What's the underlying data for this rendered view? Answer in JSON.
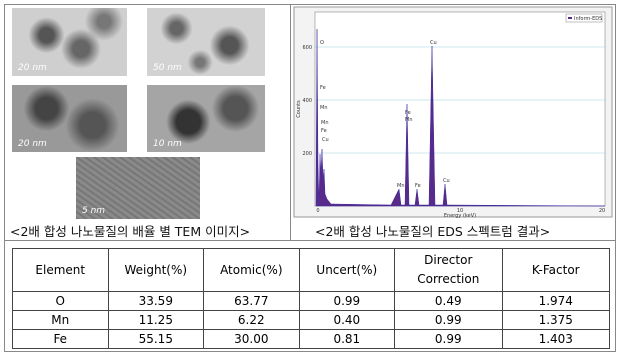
{
  "tem_images": {
    "scale_labels": [
      "20 nm",
      "50 nm",
      "20 nm",
      "10 nm",
      "5 nm"
    ],
    "caption": "<2배 합성 나노물질의 배율 별 TEM 이미지>"
  },
  "eds": {
    "legend": "Inform-EDS",
    "y_label": "Counts",
    "x_label": "Energy (keV)",
    "x_ticks": [
      "0",
      "10",
      "20"
    ],
    "y_ticks": [
      "200",
      "400",
      "600"
    ],
    "peak_labels": [
      "O",
      "Fe",
      "Mn",
      "Mn",
      "Fe",
      "Cu",
      "Fe",
      "Mn",
      "Cu",
      "Mn",
      "Fe",
      "Cu"
    ],
    "caption": "<2배 합성 나노물질의 EDS 스펙트럼 결과>"
  },
  "table": {
    "header": [
      "Element",
      "Weight(%)",
      "Atomic(%)",
      "Uncert(%)",
      "Director Correction",
      "K-Factor"
    ],
    "rows": [
      [
        "O",
        "33.59",
        "63.77",
        "0.99",
        "0.49",
        "1.974"
      ],
      [
        "Mn",
        "11.25",
        "6.22",
        "0.40",
        "0.99",
        "1.375"
      ],
      [
        "Fe",
        "55.15",
        "30.00",
        "0.81",
        "0.99",
        "1.403"
      ]
    ]
  }
}
